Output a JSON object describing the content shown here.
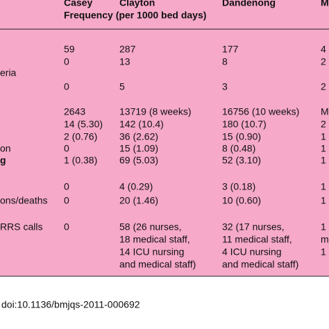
{
  "header": {
    "columns": [
      "Casey",
      "Clayton",
      "Dandenong",
      "M"
    ],
    "subtitle": "Frequency (per 1000 bed days)"
  },
  "rows": [
    {
      "cells": [
        "59",
        "287",
        "177",
        "4"
      ]
    },
    {
      "cells": [
        "0",
        "13",
        "8",
        "2"
      ]
    },
    {
      "label": "eria"
    },
    {
      "cells": [
        "0",
        "5",
        "3",
        "2"
      ]
    },
    {
      "cells": [
        "2643",
        "13719 (8 weeks)",
        "16756 (10 weeks)",
        "M"
      ]
    },
    {
      "cells": [
        "14 (5.30)",
        "142 (10.4)",
        "180 (10.7)",
        "2"
      ]
    },
    {
      "cells": [
        "2 (0.76)",
        "36 (2.62)",
        "15 (0.90)",
        "1"
      ]
    },
    {
      "label": "on",
      "cells": [
        "0",
        "15 (1.09)",
        "8 (0.48)",
        "1"
      ]
    },
    {
      "label": "g",
      "bold": true,
      "cells": [
        "1 (0.38)",
        "69 (5.03)",
        "52 (3.10)",
        "1"
      ]
    },
    {
      "cells": [
        "0",
        "4 (0.29)",
        "3 (0.18)",
        "1"
      ]
    },
    {
      "label": "ons/deaths",
      "cells": [
        "0",
        "20 (1.46)",
        "10 (0.60)",
        "1"
      ]
    },
    {
      "label": "RRS calls",
      "cells": [
        "0",
        [
          "58 (26 nurses,",
          "18 medical staff,",
          "14 ICU nursing",
          "and medical staff)"
        ],
        [
          "32 (17 nurses,",
          "11 medical staff,",
          "4 ICU nursing",
          "and medical staff)"
        ],
        [
          "1",
          "m",
          "1"
        ]
      ]
    }
  ],
  "footer": "doi:10.1136/bmjqs-2011-000692"
}
